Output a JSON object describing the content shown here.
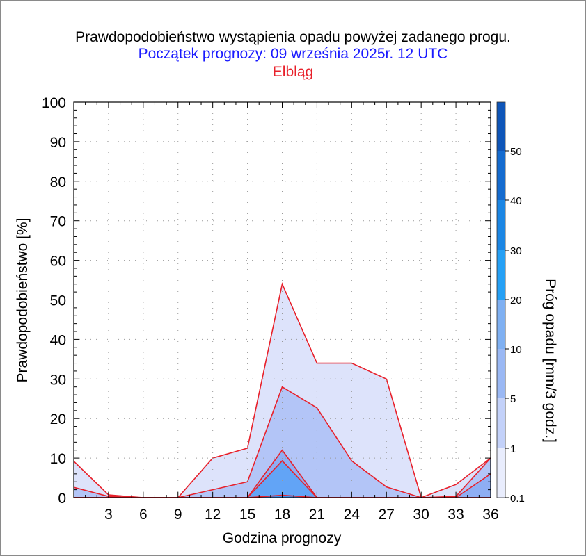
{
  "chart_data": {
    "type": "area",
    "title": "Prawdopodobieństwo wystąpienia opadu powyżej zadanego progu.",
    "subtitle": "Początek prognozy: 09 września 2025r. 12 UTC",
    "location": "Elbląg",
    "xlabel": "Godzina prognozy",
    "ylabel": "Prawdopodobieństwo [%]",
    "colorbar_label": "Próg opadu [mm/3 godz.]",
    "xlim": [
      0,
      36
    ],
    "ylim": [
      0,
      100
    ],
    "x_ticks": [
      3,
      6,
      9,
      12,
      15,
      18,
      21,
      24,
      27,
      30,
      33,
      36
    ],
    "y_ticks": [
      0,
      10,
      20,
      30,
      40,
      50,
      60,
      70,
      80,
      90,
      100
    ],
    "grid": true,
    "x": [
      0,
      3,
      6,
      9,
      12,
      15,
      18,
      21,
      24,
      27,
      30,
      33,
      36
    ],
    "series": [
      {
        "name": "0.1",
        "color": "#dde3fb",
        "values": [
          9.2,
          0.7,
          0,
          0,
          10,
          12.5,
          54,
          34,
          34,
          30,
          0,
          3.3,
          10
        ]
      },
      {
        "name": "1",
        "color": "#b3c5f7",
        "values": [
          2.6,
          0.3,
          0,
          0,
          2,
          4,
          28,
          22.7,
          9.3,
          2.7,
          0,
          0.3,
          10
        ]
      },
      {
        "name": "5",
        "color": "#8eaef4",
        "values": [
          0,
          0,
          0,
          0,
          0,
          0,
          12,
          0,
          0,
          0,
          0,
          0,
          6
        ]
      },
      {
        "name": "10",
        "color": "#62a4f6",
        "values": [
          0,
          0,
          0,
          0,
          0,
          0,
          9.3,
          0,
          0,
          0,
          0,
          0,
          0
        ]
      },
      {
        "name": "20",
        "color": "#3b8ce8",
        "values": [
          0,
          0,
          0,
          0,
          0,
          0,
          0.6,
          0,
          0,
          0,
          0,
          0,
          0
        ]
      }
    ],
    "line_color": "#e8202a",
    "colorbar": {
      "labels": [
        "0.1",
        "1",
        "5",
        "10",
        "20",
        "30",
        "40",
        "50"
      ],
      "colors": [
        "#eaedfd",
        "#d5dcfb",
        "#b8c8f7",
        "#98b5f3",
        "#78a8f1",
        "#3aa0f5",
        "#2a8de6",
        "#1f76d8",
        "#1761c6",
        "#0f4fb4",
        "#0a3d9c"
      ]
    }
  }
}
